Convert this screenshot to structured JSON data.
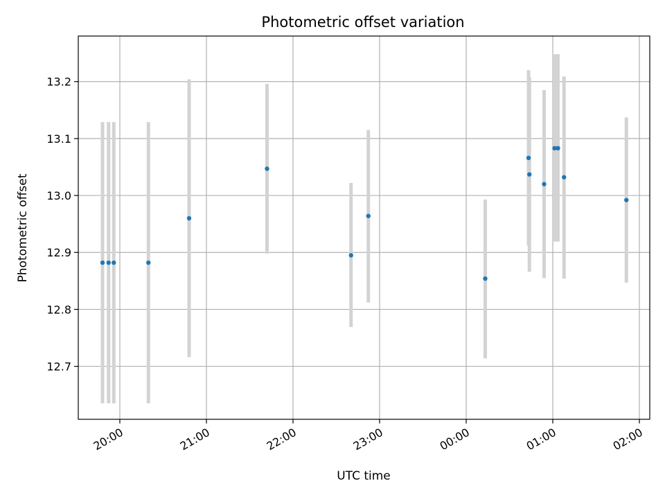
{
  "chart_data": {
    "type": "scatter",
    "title": "Photometric offset variation",
    "xlabel": "UTC time",
    "ylabel": "Photometric offset",
    "x_unit": "time of day (hours, wraps past midnight)",
    "x_ticks": [
      {
        "value": 20,
        "label": "20:00"
      },
      {
        "value": 21,
        "label": "21:00"
      },
      {
        "value": 22,
        "label": "22:00"
      },
      {
        "value": 23,
        "label": "23:00"
      },
      {
        "value": 24,
        "label": "00:00"
      },
      {
        "value": 25,
        "label": "01:00"
      },
      {
        "value": 26,
        "label": "02:00"
      }
    ],
    "y_ticks": [
      12.7,
      12.8,
      12.9,
      13.0,
      13.1,
      13.2
    ],
    "xlim": [
      19.52,
      26.12
    ],
    "ylim": [
      12.607,
      13.28
    ],
    "grid": true,
    "point_color": "#1f77b4",
    "errorbar_color": "#d3d3d3",
    "points": [
      {
        "x": 19.8,
        "y": 12.882,
        "ylow": 12.635,
        "yhigh": 13.129
      },
      {
        "x": 19.87,
        "y": 12.882,
        "ylow": 12.635,
        "yhigh": 13.129
      },
      {
        "x": 19.93,
        "y": 12.882,
        "ylow": 12.635,
        "yhigh": 13.129
      },
      {
        "x": 20.33,
        "y": 12.882,
        "ylow": 12.635,
        "yhigh": 13.129
      },
      {
        "x": 20.8,
        "y": 12.96,
        "ylow": 12.716,
        "yhigh": 13.204
      },
      {
        "x": 21.7,
        "y": 13.047,
        "ylow": 12.898,
        "yhigh": 13.196
      },
      {
        "x": 22.67,
        "y": 12.895,
        "ylow": 12.769,
        "yhigh": 13.022
      },
      {
        "x": 22.87,
        "y": 12.964,
        "ylow": 12.812,
        "yhigh": 13.115
      },
      {
        "x": 24.22,
        "y": 12.854,
        "ylow": 12.714,
        "yhigh": 12.993
      },
      {
        "x": 24.72,
        "y": 13.066,
        "ylow": 12.912,
        "yhigh": 13.22
      },
      {
        "x": 24.73,
        "y": 13.037,
        "ylow": 12.866,
        "yhigh": 13.208
      },
      {
        "x": 24.9,
        "y": 13.02,
        "ylow": 12.855,
        "yhigh": 13.185
      },
      {
        "x": 25.02,
        "y": 13.083,
        "ylow": 12.919,
        "yhigh": 13.248
      },
      {
        "x": 25.06,
        "y": 13.083,
        "ylow": 12.919,
        "yhigh": 13.248
      },
      {
        "x": 25.13,
        "y": 13.032,
        "ylow": 12.854,
        "yhigh": 13.209
      },
      {
        "x": 25.85,
        "y": 12.992,
        "ylow": 12.847,
        "yhigh": 13.137
      }
    ]
  }
}
